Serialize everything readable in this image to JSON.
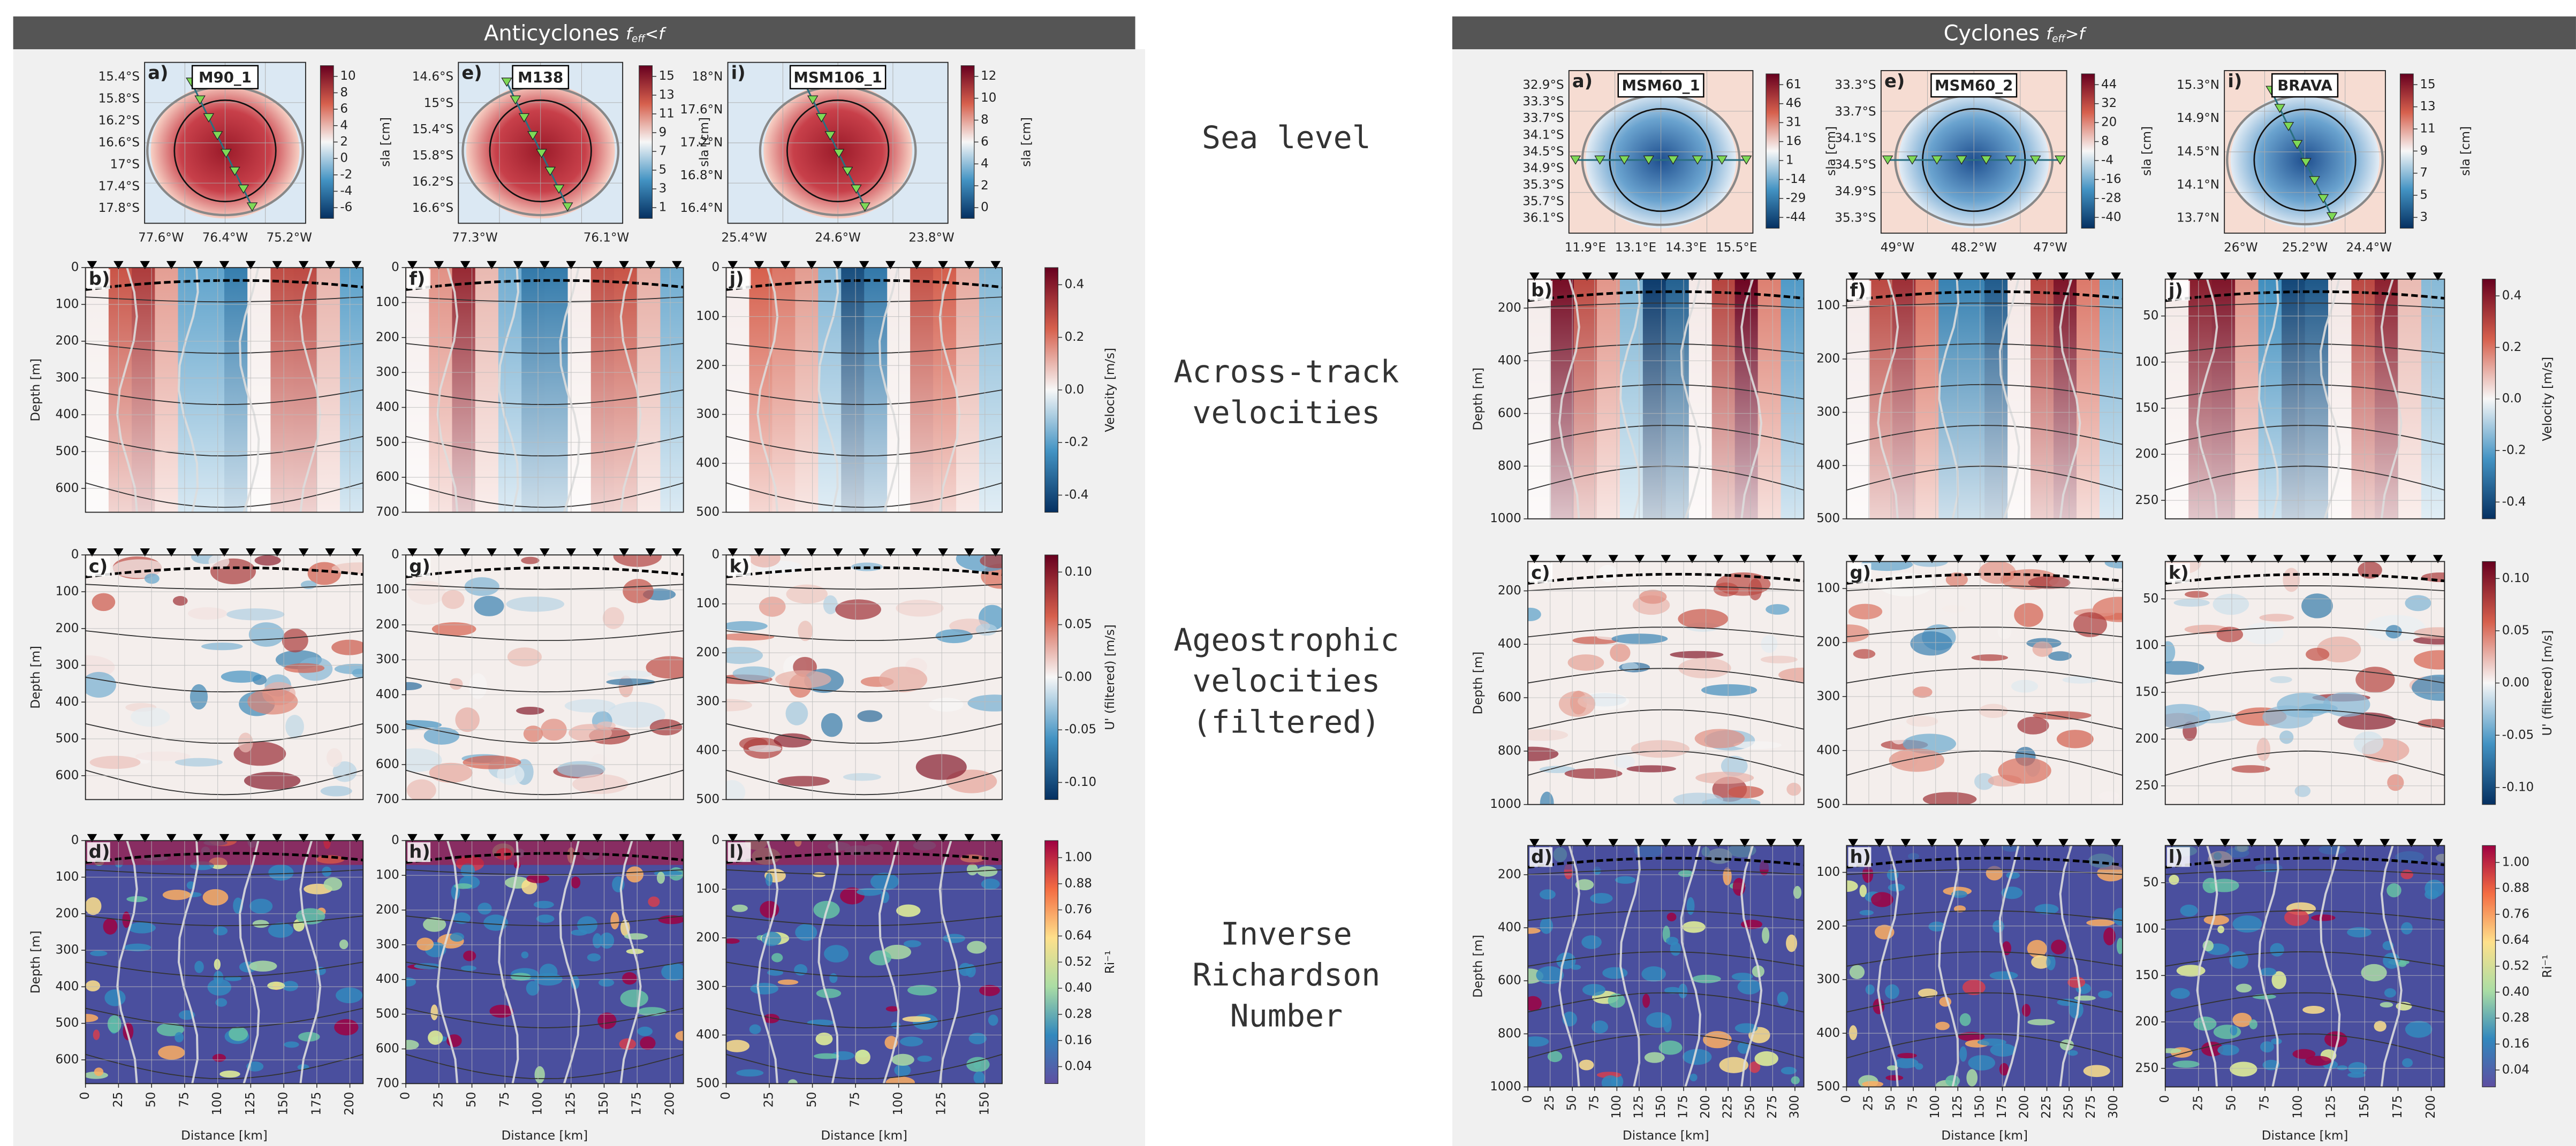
{
  "middle_labels": [
    [
      "Sea level"
    ],
    [
      "Across-track",
      "velocities"
    ],
    [
      "Ageostrophic",
      "velocities",
      "(filtered)"
    ],
    [
      "Inverse",
      "Richardson",
      "Number"
    ]
  ],
  "axis_labels": {
    "depth": "Depth [m]",
    "distance": "Distance [km]",
    "sla": "sla [cm]"
  },
  "row_colorbars": [
    {
      "label": "Velocity [m/s]",
      "ticks": [
        0.4,
        0.2,
        {
          "value": 0,
          "label": "0.0"
        },
        -0.2,
        -0.4
      ]
    },
    {
      "label": "U' (filtered) [m/s]",
      "ticks": [
        {
          "value": 0.1,
          "label": "0.10"
        },
        0.05,
        {
          "value": 0,
          "label": "0.00"
        },
        -0.05,
        {
          "value": -0.1,
          "label": "-0.10"
        }
      ]
    },
    {
      "label": "Ri⁻¹",
      "ticks": [
        {
          "value": 1,
          "label": "1.00"
        },
        0.88,
        0.76,
        0.64,
        0.52,
        {
          "value": 0.4,
          "label": "0.40"
        },
        0.28,
        0.16,
        0.04
      ]
    }
  ],
  "groups": [
    {
      "title": "Anticyclones",
      "condition": [
        "f",
        "eff",
        "<f"
      ],
      "columns": [
        {
          "map": {
            "letter": "a)",
            "name": "M90_1",
            "lat": [
              "15.4°S",
              "15.8°S",
              "16.2°S",
              "16.6°S",
              "17°S",
              "17.4°S",
              "17.8°S"
            ],
            "lon": [
              "77.6°W",
              "76.4°W",
              "75.2°W"
            ],
            "cbar_ticks": [
              10,
              8,
              6,
              4,
              2,
              0,
              -2,
              -4,
              -6
            ]
          },
          "sections": {
            "letters": [
              "b)",
              "c)",
              "d)"
            ],
            "ylim": [
              0,
              665
            ],
            "yticks": [
              0,
              100,
              200,
              300,
              400,
              500,
              600
            ],
            "xlim": [
              0,
              210
            ],
            "xticks": [
              0,
              25,
              50,
              75,
              100,
              125,
              150,
              175,
              200
            ]
          }
        },
        {
          "map": {
            "letter": "e)",
            "name": "M138",
            "lat": [
              "14.6°S",
              "15°S",
              "15.4°S",
              "15.8°S",
              "16.2°S",
              "16.6°S"
            ],
            "lon": [
              "77.3°W",
              "76.1°W"
            ],
            "cbar_ticks": [
              15,
              13,
              11,
              9,
              7,
              5,
              3,
              1
            ]
          },
          "sections": {
            "letters": [
              "f)",
              "g)",
              "h)"
            ],
            "ylim": [
              0,
              700
            ],
            "yticks": [
              0,
              100,
              200,
              300,
              400,
              500,
              600,
              700
            ],
            "xlim": [
              0,
              210
            ],
            "xticks": [
              0,
              25,
              50,
              75,
              100,
              125,
              150,
              175,
              200
            ]
          }
        },
        {
          "map": {
            "letter": "i)",
            "name": "MSM106_1",
            "lat": [
              "18°N",
              "17.6°N",
              "17.2°N",
              "16.8°N",
              "16.4°N"
            ],
            "lon": [
              "25.4°W",
              "24.6°W",
              "23.8°W"
            ],
            "cbar_ticks": [
              12,
              10,
              8,
              6,
              4,
              2,
              0
            ]
          },
          "sections": {
            "letters": [
              "j)",
              "k)",
              "l)"
            ],
            "ylim": [
              0,
              500
            ],
            "yticks": [
              0,
              100,
              200,
              300,
              400,
              500
            ],
            "xlim": [
              0,
              160
            ],
            "xticks": [
              0,
              25,
              50,
              75,
              100,
              125,
              150
            ]
          }
        }
      ]
    },
    {
      "title": "Cyclones",
      "condition": [
        "f",
        "eff",
        ">f"
      ],
      "columns": [
        {
          "map": {
            "letter": "a)",
            "name": "MSM60_1",
            "lat": [
              "32.9°S",
              "33.3°S",
              "33.7°S",
              "34.1°S",
              "34.5°S",
              "34.9°S",
              "35.3°S",
              "35.7°S",
              "36.1°S"
            ],
            "lon": [
              "11.9°E",
              "13.1°E",
              "14.3°E",
              "15.5°E"
            ],
            "cbar_ticks": [
              61,
              46,
              31,
              16,
              1,
              -14,
              -29,
              -44
            ]
          },
          "sections": {
            "letters": [
              "b)",
              "c)",
              "d)"
            ],
            "ylim": [
              90,
              1000
            ],
            "yticks": [
              200,
              400,
              600,
              800,
              1000
            ],
            "xlim": [
              0,
              310
            ],
            "xticks": [
              0,
              25,
              50,
              75,
              100,
              125,
              150,
              175,
              200,
              225,
              250,
              275,
              300
            ]
          }
        },
        {
          "map": {
            "letter": "e)",
            "name": "MSM60_2",
            "lat": [
              "33.3°S",
              "33.7°S",
              "34.1°S",
              "34.5°S",
              "34.9°S",
              "35.3°S"
            ],
            "lon": [
              "49°W",
              "48.2°W",
              "47°W"
            ],
            "cbar_ticks": [
              44,
              32,
              20,
              8,
              -4,
              -16,
              -28,
              -40
            ]
          },
          "sections": {
            "letters": [
              "f)",
              "g)",
              "h)"
            ],
            "ylim": [
              50,
              500
            ],
            "yticks": [
              100,
              200,
              300,
              400,
              500
            ],
            "xlim": [
              0,
              310
            ],
            "xticks": [
              0,
              25,
              50,
              75,
              100,
              125,
              150,
              175,
              200,
              225,
              250,
              275,
              300
            ]
          }
        },
        {
          "map": {
            "letter": "i)",
            "name": "BRAVA",
            "lat": [
              "15.3°N",
              "14.9°N",
              "14.5°N",
              "14.1°N",
              "13.7°N"
            ],
            "lon": [
              "26°W",
              "25.2°W",
              "24.4°W"
            ],
            "cbar_ticks": [
              15,
              13,
              11,
              9,
              7,
              5,
              3
            ]
          },
          "sections": {
            "letters": [
              "j)",
              "k)",
              "l)"
            ],
            "ylim": [
              10,
              270
            ],
            "yticks": [
              50,
              100,
              150,
              200,
              250
            ],
            "xlim": [
              0,
              210
            ],
            "xticks": [
              0,
              25,
              50,
              75,
              100,
              125,
              150,
              175,
              200
            ]
          }
        }
      ]
    }
  ]
}
